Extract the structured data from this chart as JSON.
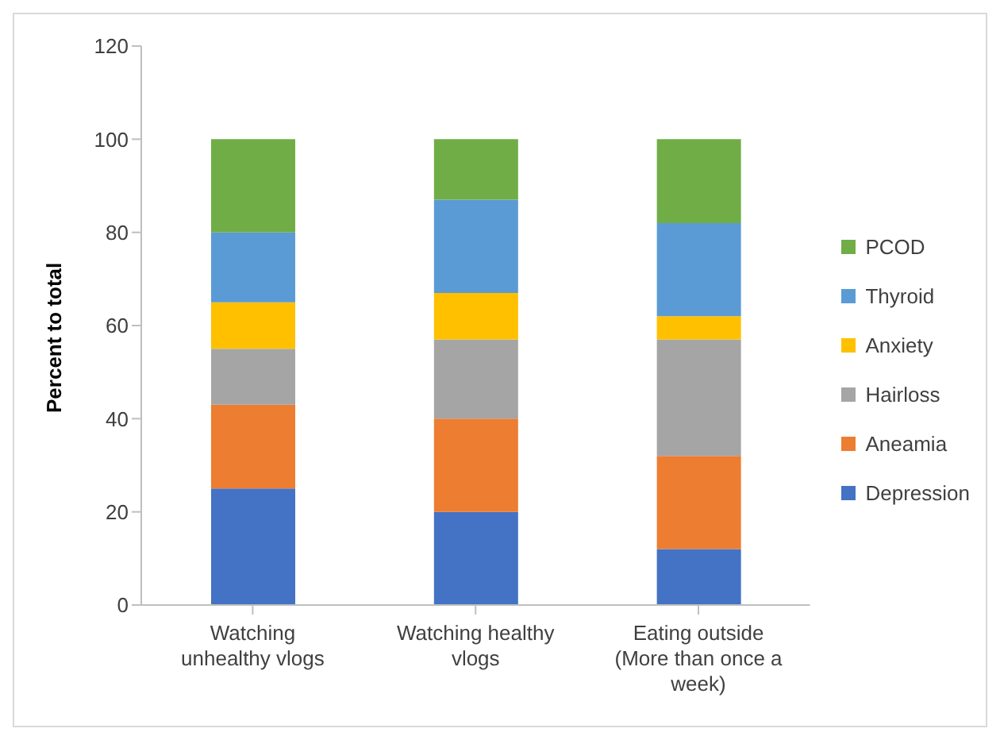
{
  "chart_data": {
    "type": "bar",
    "stacked": true,
    "ylabel": "Percent to total",
    "categories": [
      "Watching unhealthy vlogs",
      "Watching healthy vlogs",
      "Eating outside (More than once a week)"
    ],
    "series": [
      {
        "name": "Depression",
        "color": "#4472c4",
        "values": [
          25,
          20,
          12
        ]
      },
      {
        "name": "Aneamia",
        "color": "#ed7d31",
        "values": [
          18,
          20,
          20
        ]
      },
      {
        "name": "Hairloss",
        "color": "#a5a5a5",
        "values": [
          12,
          17,
          25
        ]
      },
      {
        "name": "Anxiety",
        "color": "#ffc000",
        "values": [
          10,
          10,
          5
        ]
      },
      {
        "name": "Thyroid",
        "color": "#5b9bd5",
        "values": [
          15,
          20,
          20
        ]
      },
      {
        "name": "PCOD",
        "color": "#70ad47",
        "values": [
          20,
          13,
          18
        ]
      }
    ],
    "ylim": [
      0,
      120
    ],
    "yticks": [
      0,
      20,
      40,
      60,
      80,
      100,
      120
    ],
    "grid": false,
    "legend": "right"
  }
}
